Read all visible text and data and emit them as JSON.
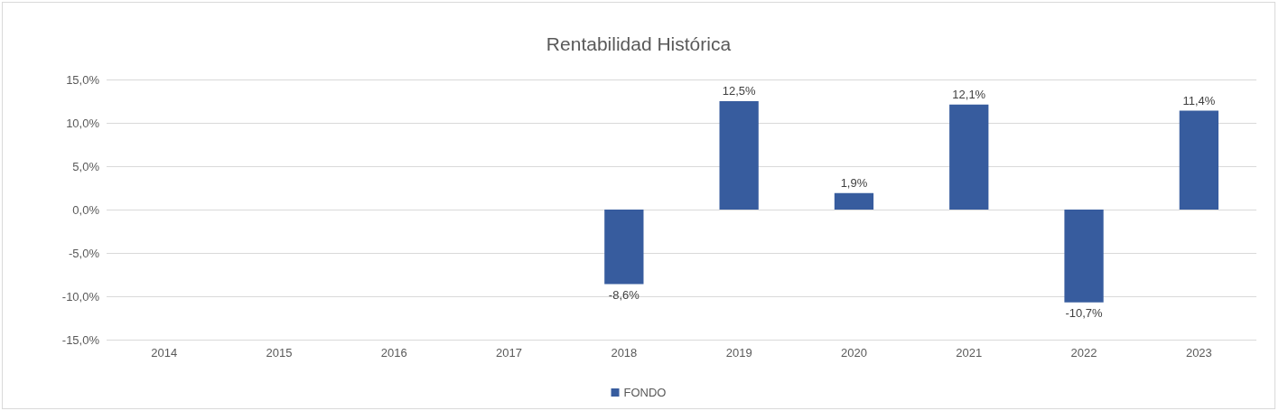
{
  "chart_data": {
    "type": "bar",
    "title": "Rentabilidad Histórica",
    "categories": [
      "2014",
      "2015",
      "2016",
      "2017",
      "2018",
      "2019",
      "2020",
      "2021",
      "2022",
      "2023"
    ],
    "series": [
      {
        "name": "FONDO",
        "color": "#375c9e",
        "values": [
          null,
          null,
          null,
          null,
          -8.6,
          12.5,
          1.9,
          12.1,
          -10.7,
          11.4
        ],
        "value_labels": [
          null,
          null,
          null,
          null,
          "-8,6%",
          "12,5%",
          "1,9%",
          "12,1%",
          "-10,7%",
          "11,4%"
        ]
      }
    ],
    "ylim": [
      -15,
      15
    ],
    "yticks": [
      {
        "value": -15,
        "label": "-15,0%"
      },
      {
        "value": -10,
        "label": "-10,0%"
      },
      {
        "value": -5,
        "label": "-5,0%"
      },
      {
        "value": 0,
        "label": "0,0%"
      },
      {
        "value": 5,
        "label": "5,0%"
      },
      {
        "value": 10,
        "label": "10,0%"
      },
      {
        "value": 15,
        "label": "15,0%"
      }
    ],
    "grid": "y",
    "legend": "bottom"
  }
}
